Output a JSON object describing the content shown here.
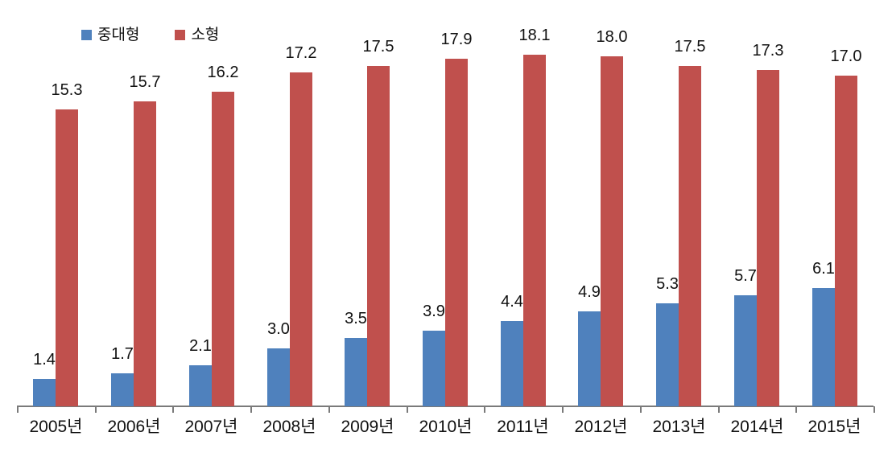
{
  "chart_data": {
    "type": "bar",
    "title": "",
    "xlabel": "",
    "ylabel": "",
    "categories": [
      "2005년",
      "2006년",
      "2007년",
      "2008년",
      "2009년",
      "2010년",
      "2011년",
      "2012년",
      "2013년",
      "2014년",
      "2015년"
    ],
    "series": [
      {
        "name": "중대형",
        "color": "#4F81BD",
        "values": [
          1.4,
          1.7,
          2.1,
          3.0,
          3.5,
          3.9,
          4.4,
          4.9,
          5.3,
          5.7,
          6.1
        ]
      },
      {
        "name": "소형",
        "color": "#C0504D",
        "values": [
          15.3,
          15.7,
          16.2,
          17.2,
          17.5,
          17.9,
          18.1,
          18.0,
          17.5,
          17.3,
          17.0
        ]
      }
    ],
    "data_labels": true,
    "data_label_decimals": 1,
    "legend_position": "top-left",
    "grid": false,
    "y_axis_visible": false,
    "ylim": [
      0,
      20
    ],
    "axis_color": "#7a7a7a",
    "text_color": "#111111",
    "background_color": "#ffffff"
  }
}
